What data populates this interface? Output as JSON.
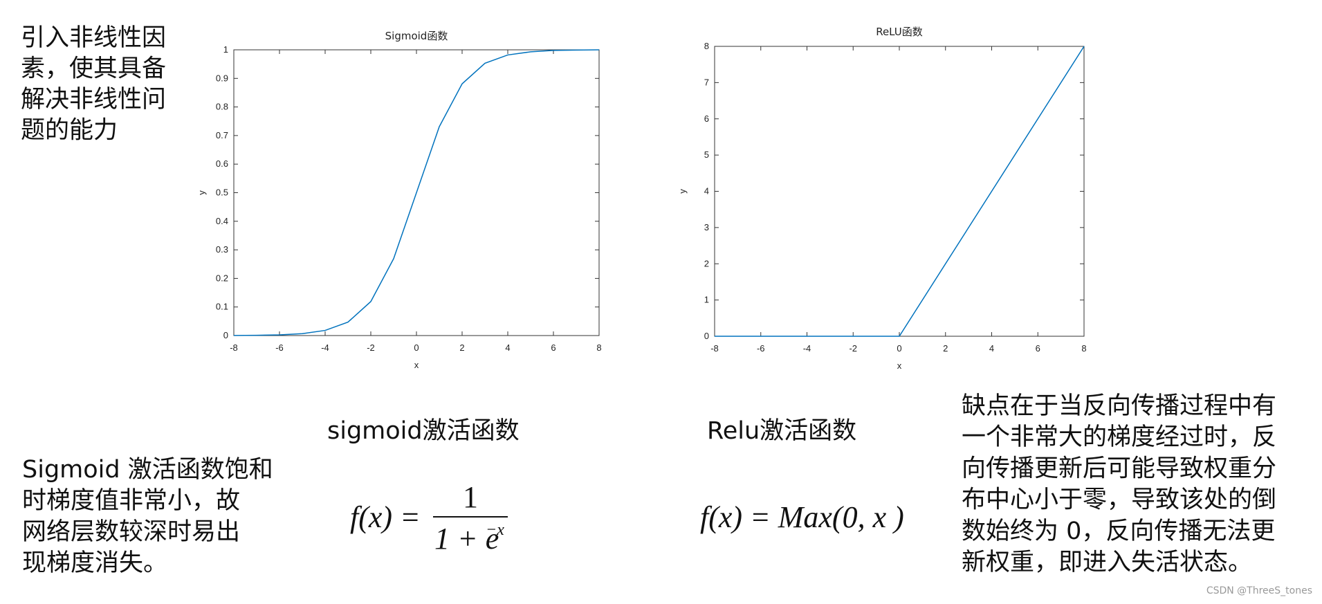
{
  "chart_data": [
    {
      "type": "line",
      "title": "Sigmoid函数",
      "x_label": "x",
      "y_label": "y",
      "x": [
        -8,
        -7,
        -6,
        -5,
        -4,
        -3,
        -2,
        -1,
        0,
        1,
        2,
        3,
        4,
        5,
        6,
        7,
        8
      ],
      "series": [
        {
          "color": "#0072bd",
          "values": [
            0.0003,
            0.0009,
            0.0025,
            0.0067,
            0.018,
            0.047,
            0.119,
            0.269,
            0.5,
            0.731,
            0.881,
            0.953,
            0.982,
            0.993,
            0.998,
            0.999,
            1.0
          ]
        }
      ],
      "xlim": [
        -8,
        8
      ],
      "xticks": [
        -8,
        -6,
        -4,
        -2,
        0,
        2,
        4,
        6,
        8
      ],
      "ylim": [
        0,
        1
      ],
      "yticks": [
        0,
        0.1,
        0.2,
        0.3,
        0.4,
        0.5,
        0.6,
        0.7,
        0.8,
        0.9,
        1
      ]
    },
    {
      "type": "line",
      "title": "ReLU函数",
      "x_label": "x",
      "y_label": "y",
      "x": [
        -8,
        0,
        8
      ],
      "series": [
        {
          "color": "#0072bd",
          "values": [
            0,
            0,
            8
          ]
        }
      ],
      "xlim": [
        -8,
        8
      ],
      "xticks": [
        -8,
        -6,
        -4,
        -2,
        0,
        2,
        4,
        6,
        8
      ],
      "ylim": [
        0,
        8
      ],
      "yticks": [
        0,
        1,
        2,
        3,
        4,
        5,
        6,
        7,
        8
      ]
    }
  ],
  "texts": {
    "intro": [
      "引入非线性因",
      "素，使其具备",
      "解决非线性问",
      "题的能力"
    ],
    "sigmoid_caption": "sigmoid激活函数",
    "relu_caption": "Relu激活函数",
    "sigmoid_formula": {
      "lhs": "f(x) =",
      "numerator": "1",
      "denominator": "1 + e",
      "exponent": "−x"
    },
    "relu_formula": "f(x) = Max(0, x )",
    "sigmoid_note": [
      "Sigmoid 激活函数饱和",
      "时梯度值非常小，故",
      "网络层数较深时易出",
      "现梯度消失。"
    ],
    "relu_note": [
      "缺点在于当反向传播过程中有",
      "一个非常大的梯度经过时，反",
      "向传播更新后可能导致权重分",
      "布中心小于零，导致该处的倒",
      "数始终为 0，反向传播无法更",
      "新权重，即进入失活状态。"
    ],
    "watermark": "CSDN @ThreeS_tones"
  }
}
